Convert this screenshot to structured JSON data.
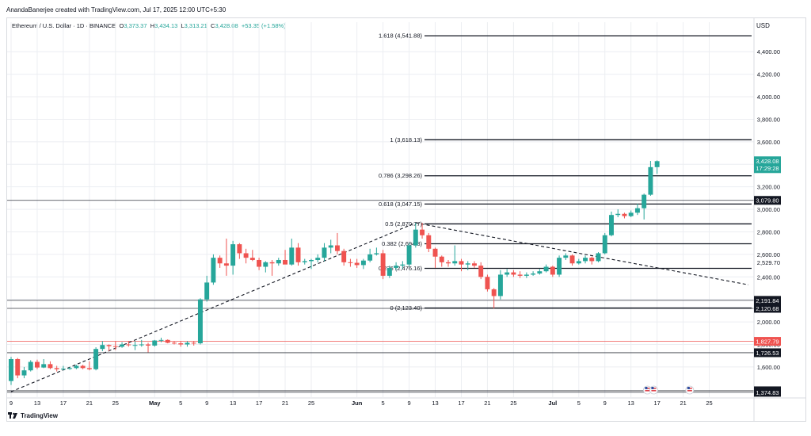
{
  "credit": "AnandaBanerjee created with TradingView.com, Jul 17, 2025 12:00 UTC+5:30",
  "legend": {
    "symbol": "Ethereum / U.S. Dollar · 1D · BINANCE",
    "o_label": "O",
    "o": "3,373.37",
    "h_label": "H",
    "h": "3,434.13",
    "l_label": "L",
    "l": "3,313.21",
    "c_label": "C",
    "c": "3,428.08",
    "change": "+53.35 (+1.58%)"
  },
  "currency": "USD",
  "brand": "TradingView",
  "colors": {
    "up": "#26a69a",
    "down": "#ef5350",
    "grid": "#eceef2",
    "text": "#131722",
    "last_price_bg": "#26a69a",
    "level_label_bg": "#131722",
    "red_level": "#ef5350"
  },
  "chart_data": {
    "type": "candlestick",
    "symbol": "ETHUSD",
    "exchange": "BINANCE",
    "timeframe": "1D",
    "y_ticks": [
      1600,
      1800,
      2000,
      2200,
      2400,
      2600,
      2800,
      3000,
      3200,
      3400,
      3600,
      3800,
      4000,
      4200,
      4400
    ],
    "y_range": [
      1360,
      4620
    ],
    "x_tick_labels": [
      {
        "date": "2025-04-09",
        "label": "9"
      },
      {
        "date": "2025-04-13",
        "label": "13"
      },
      {
        "date": "2025-04-17",
        "label": "17"
      },
      {
        "date": "2025-04-21",
        "label": "21"
      },
      {
        "date": "2025-04-25",
        "label": "25"
      },
      {
        "date": "2025-05-01",
        "label": "May"
      },
      {
        "date": "2025-05-05",
        "label": "5"
      },
      {
        "date": "2025-05-09",
        "label": "9"
      },
      {
        "date": "2025-05-13",
        "label": "13"
      },
      {
        "date": "2025-05-17",
        "label": "17"
      },
      {
        "date": "2025-05-21",
        "label": "21"
      },
      {
        "date": "2025-05-25",
        "label": "25"
      },
      {
        "date": "2025-06-01",
        "label": "Jun"
      },
      {
        "date": "2025-06-05",
        "label": "5"
      },
      {
        "date": "2025-06-09",
        "label": "9"
      },
      {
        "date": "2025-06-13",
        "label": "13"
      },
      {
        "date": "2025-06-17",
        "label": "17"
      },
      {
        "date": "2025-06-21",
        "label": "21"
      },
      {
        "date": "2025-06-25",
        "label": "25"
      },
      {
        "date": "2025-07-01",
        "label": "Jul"
      },
      {
        "date": "2025-07-05",
        "label": "5"
      },
      {
        "date": "2025-07-09",
        "label": "9"
      },
      {
        "date": "2025-07-13",
        "label": "13"
      },
      {
        "date": "2025-07-17",
        "label": "17"
      },
      {
        "date": "2025-07-21",
        "label": "21"
      },
      {
        "date": "2025-07-25",
        "label": "25"
      }
    ],
    "fib_levels": [
      {
        "label": "1.618 (4,541.88)",
        "value": 4541.88
      },
      {
        "label": "1 (3,618.13)",
        "value": 3618.13
      },
      {
        "label": "0.786 (3,298.26)",
        "value": 3298.26
      },
      {
        "label": "0.618 (3,047.15)",
        "value": 3047.15
      },
      {
        "label": "0.5 (2,870.77)",
        "value": 2870.77
      },
      {
        "label": "0.382 (2,694.3)",
        "value": 2694.3
      },
      {
        "label": "0.236 (2,476.16)",
        "value": 2476.16
      },
      {
        "label": "0 (2,123.40)",
        "value": 2123.4
      }
    ],
    "horizontal_lines": [
      {
        "value": 3079.8,
        "label": "3,079.80",
        "color": "#131722"
      },
      {
        "value": 2191.84,
        "label": "2,191.84",
        "color": "#131722"
      },
      {
        "value": 2120.68,
        "label": "2,120.68",
        "color": "#131722"
      },
      {
        "value": 1827.79,
        "label": "1,827.79",
        "color": "#ef5350"
      },
      {
        "value": 1726.53,
        "label": "1,726.53",
        "color": "#131722"
      },
      {
        "value": 1388.52,
        "label": "1,388.52",
        "color": "#131722"
      },
      {
        "value": 1374.83,
        "label": "1,374.83",
        "color": "#131722"
      }
    ],
    "extra_axis_labels": [
      {
        "value": 2529.7,
        "label": "2,529.70"
      }
    ],
    "last_price": {
      "value": 3428.08,
      "label": "3,428.08",
      "countdown": "17:29:28"
    },
    "trendlines": [
      {
        "from": {
          "date": "2025-04-09",
          "value": 1380
        },
        "to": {
          "date": "2025-06-10",
          "value": 2880
        }
      },
      {
        "from": {
          "date": "2025-06-10",
          "value": 2880
        },
        "to": {
          "date": "2025-07-31",
          "value": 2330
        }
      }
    ],
    "candles": [
      [
        "2025-04-09",
        1475,
        1690,
        1440,
        1670
      ],
      [
        "2025-04-10",
        1670,
        1680,
        1500,
        1525
      ],
      [
        "2025-04-11",
        1525,
        1600,
        1500,
        1570
      ],
      [
        "2025-04-12",
        1570,
        1660,
        1560,
        1645
      ],
      [
        "2025-04-13",
        1645,
        1665,
        1580,
        1595
      ],
      [
        "2025-04-14",
        1595,
        1670,
        1590,
        1625
      ],
      [
        "2025-04-15",
        1625,
        1650,
        1580,
        1590
      ],
      [
        "2025-04-16",
        1590,
        1610,
        1560,
        1580
      ],
      [
        "2025-04-17",
        1580,
        1610,
        1570,
        1585
      ],
      [
        "2025-04-18",
        1585,
        1600,
        1575,
        1590
      ],
      [
        "2025-04-19",
        1590,
        1620,
        1580,
        1610
      ],
      [
        "2025-04-20",
        1610,
        1620,
        1580,
        1590
      ],
      [
        "2025-04-21",
        1590,
        1650,
        1570,
        1580
      ],
      [
        "2025-04-22",
        1580,
        1775,
        1570,
        1760
      ],
      [
        "2025-04-23",
        1760,
        1830,
        1740,
        1795
      ],
      [
        "2025-04-24",
        1795,
        1800,
        1740,
        1785
      ],
      [
        "2025-04-25",
        1785,
        1830,
        1750,
        1780
      ],
      [
        "2025-04-26",
        1780,
        1820,
        1770,
        1800
      ],
      [
        "2025-04-27",
        1800,
        1830,
        1780,
        1795
      ],
      [
        "2025-04-28",
        1795,
        1830,
        1750,
        1795
      ],
      [
        "2025-04-29",
        1795,
        1840,
        1780,
        1800
      ],
      [
        "2025-04-30",
        1800,
        1815,
        1730,
        1790
      ],
      [
        "2025-05-01",
        1790,
        1840,
        1780,
        1835
      ],
      [
        "2025-05-02",
        1835,
        1860,
        1820,
        1840
      ],
      [
        "2025-05-03",
        1840,
        1845,
        1810,
        1815
      ],
      [
        "2025-05-04",
        1815,
        1830,
        1800,
        1810
      ],
      [
        "2025-05-05",
        1810,
        1830,
        1780,
        1800
      ],
      [
        "2025-05-06",
        1800,
        1830,
        1780,
        1815
      ],
      [
        "2025-05-07",
        1815,
        1830,
        1790,
        1810
      ],
      [
        "2025-05-08",
        1810,
        2210,
        1800,
        2200
      ],
      [
        "2025-05-09",
        2200,
        2410,
        2180,
        2350
      ],
      [
        "2025-05-10",
        2350,
        2600,
        2330,
        2570
      ],
      [
        "2025-05-11",
        2570,
        2590,
        2480,
        2520
      ],
      [
        "2025-05-12",
        2520,
        2740,
        2410,
        2500
      ],
      [
        "2025-05-13",
        2500,
        2720,
        2420,
        2690
      ],
      [
        "2025-05-14",
        2690,
        2700,
        2560,
        2610
      ],
      [
        "2025-05-15",
        2610,
        2650,
        2520,
        2570
      ],
      [
        "2025-05-16",
        2570,
        2640,
        2540,
        2550
      ],
      [
        "2025-05-17",
        2550,
        2570,
        2460,
        2490
      ],
      [
        "2025-05-18",
        2490,
        2540,
        2440,
        2530
      ],
      [
        "2025-05-19",
        2530,
        2550,
        2410,
        2520
      ],
      [
        "2025-05-20",
        2520,
        2570,
        2500,
        2550
      ],
      [
        "2025-05-21",
        2550,
        2640,
        2520,
        2510
      ],
      [
        "2025-05-22",
        2510,
        2740,
        2500,
        2660
      ],
      [
        "2025-05-23",
        2660,
        2700,
        2500,
        2530
      ],
      [
        "2025-05-24",
        2530,
        2560,
        2510,
        2540
      ],
      [
        "2025-05-25",
        2540,
        2560,
        2470,
        2550
      ],
      [
        "2025-05-26",
        2550,
        2600,
        2530,
        2570
      ],
      [
        "2025-05-27",
        2570,
        2700,
        2540,
        2660
      ],
      [
        "2025-05-28",
        2660,
        2730,
        2610,
        2680
      ],
      [
        "2025-05-29",
        2680,
        2790,
        2600,
        2630
      ],
      [
        "2025-05-30",
        2630,
        2650,
        2500,
        2530
      ],
      [
        "2025-05-31",
        2530,
        2560,
        2490,
        2525
      ],
      [
        "2025-06-01",
        2525,
        2560,
        2480,
        2505
      ],
      [
        "2025-06-02",
        2505,
        2560,
        2470,
        2545
      ],
      [
        "2025-06-03",
        2545,
        2650,
        2530,
        2600
      ],
      [
        "2025-06-04",
        2600,
        2660,
        2590,
        2610
      ],
      [
        "2025-06-05",
        2610,
        2640,
        2380,
        2410
      ],
      [
        "2025-06-06",
        2410,
        2500,
        2390,
        2480
      ],
      [
        "2025-06-07",
        2480,
        2530,
        2460,
        2500
      ],
      [
        "2025-06-08",
        2500,
        2540,
        2470,
        2510
      ],
      [
        "2025-06-09",
        2510,
        2700,
        2490,
        2680
      ],
      [
        "2025-06-10",
        2680,
        2880,
        2660,
        2820
      ],
      [
        "2025-06-11",
        2820,
        2880,
        2740,
        2770
      ],
      [
        "2025-06-12",
        2770,
        2790,
        2620,
        2650
      ],
      [
        "2025-06-13",
        2650,
        2660,
        2480,
        2580
      ],
      [
        "2025-06-14",
        2580,
        2590,
        2490,
        2530
      ],
      [
        "2025-06-15",
        2530,
        2550,
        2490,
        2520
      ],
      [
        "2025-06-16",
        2520,
        2680,
        2500,
        2540
      ],
      [
        "2025-06-17",
        2540,
        2560,
        2450,
        2510
      ],
      [
        "2025-06-18",
        2510,
        2540,
        2460,
        2520
      ],
      [
        "2025-06-19",
        2520,
        2540,
        2480,
        2500
      ],
      [
        "2025-06-20",
        2500,
        2530,
        2380,
        2400
      ],
      [
        "2025-06-21",
        2400,
        2420,
        2270,
        2290
      ],
      [
        "2025-06-22",
        2290,
        2300,
        2120,
        2230
      ],
      [
        "2025-06-23",
        2230,
        2460,
        2200,
        2420
      ],
      [
        "2025-06-24",
        2420,
        2470,
        2400,
        2440
      ],
      [
        "2025-06-25",
        2440,
        2460,
        2400,
        2420
      ],
      [
        "2025-06-26",
        2420,
        2450,
        2390,
        2410
      ],
      [
        "2025-06-27",
        2410,
        2440,
        2390,
        2420
      ],
      [
        "2025-06-28",
        2420,
        2450,
        2410,
        2430
      ],
      [
        "2025-06-29",
        2430,
        2470,
        2420,
        2450
      ],
      [
        "2025-06-30",
        2450,
        2510,
        2440,
        2490
      ],
      [
        "2025-07-01",
        2490,
        2500,
        2400,
        2420
      ],
      [
        "2025-07-02",
        2420,
        2590,
        2400,
        2570
      ],
      [
        "2025-07-03",
        2570,
        2610,
        2550,
        2590
      ],
      [
        "2025-07-04",
        2590,
        2600,
        2500,
        2520
      ],
      [
        "2025-07-05",
        2520,
        2560,
        2510,
        2540
      ],
      [
        "2025-07-06",
        2540,
        2590,
        2520,
        2570
      ],
      [
        "2025-07-07",
        2570,
        2580,
        2510,
        2540
      ],
      [
        "2025-07-08",
        2540,
        2620,
        2530,
        2610
      ],
      [
        "2025-07-09",
        2610,
        2790,
        2600,
        2770
      ],
      [
        "2025-07-10",
        2770,
        2980,
        2760,
        2950
      ],
      [
        "2025-07-11",
        2950,
        3000,
        2930,
        2960
      ],
      [
        "2025-07-12",
        2960,
        2970,
        2920,
        2940
      ],
      [
        "2025-07-13",
        2940,
        2990,
        2930,
        2970
      ],
      [
        "2025-07-14",
        2970,
        3050,
        2950,
        3010
      ],
      [
        "2025-07-15",
        3010,
        3140,
        2910,
        3130
      ],
      [
        "2025-07-16",
        3130,
        3430,
        3120,
        3375
      ],
      [
        "2025-07-17",
        3375,
        3435,
        3315,
        3428
      ]
    ],
    "plot": {
      "start_date": "2025-04-09",
      "end_date": "2025-07-31"
    }
  }
}
